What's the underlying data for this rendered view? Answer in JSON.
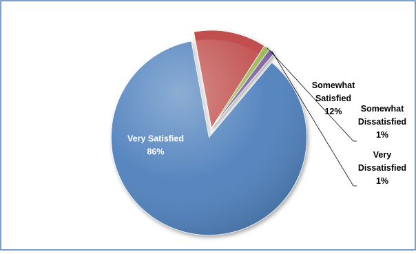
{
  "chart_data": {
    "type": "pie",
    "title": "",
    "slices": [
      {
        "label": "Very Satisfied",
        "percent_label": "86%",
        "value": 86,
        "color": "#4f81bd"
      },
      {
        "label": "Somewhat Satisfied",
        "percent_label": "12%",
        "value": 12,
        "color": "#c0504d"
      },
      {
        "label": "Somewhat Dissatisfied",
        "percent_label": "1%",
        "value": 1,
        "color": "#9bbb59"
      },
      {
        "label": "Very Dissatisfied",
        "percent_label": "1%",
        "value": 1,
        "color": "#8064a2"
      }
    ],
    "legend": "none",
    "frame_border_color": "#4f81bd",
    "label_text_colors": {
      "inside": "#ffffff",
      "outside": "#000000"
    }
  }
}
